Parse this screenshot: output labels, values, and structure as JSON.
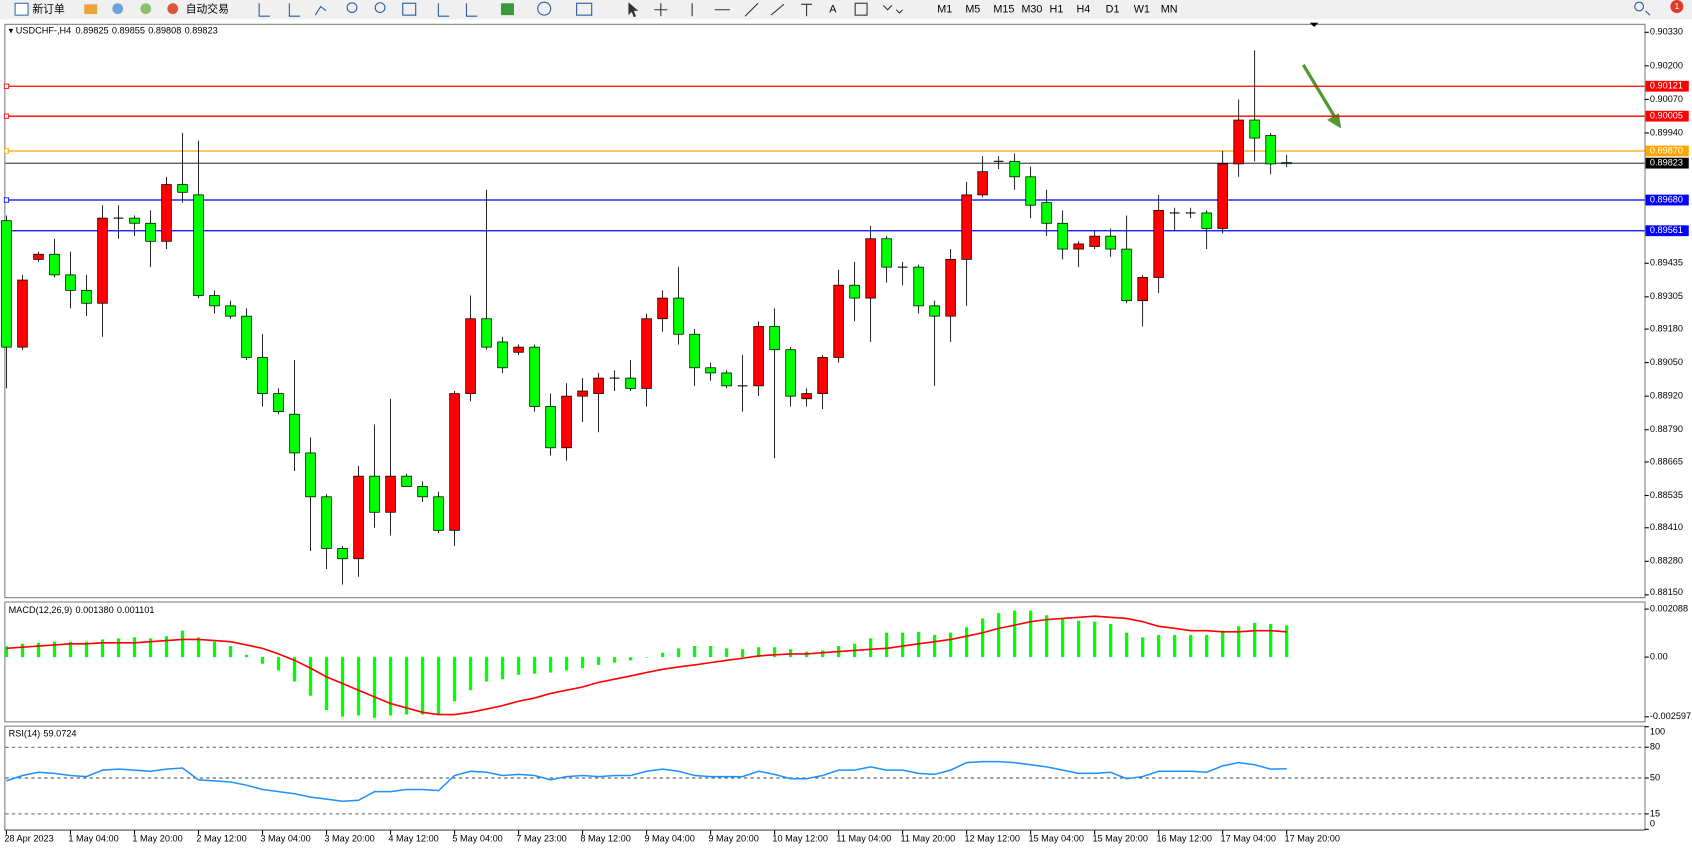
{
  "toolbar": {
    "new_order": "新订单",
    "auto_trading": "自动交易",
    "timeframes": [
      "M1",
      "M5",
      "M15",
      "M30",
      "H1",
      "H4",
      "D1",
      "W1",
      "MN"
    ],
    "badge": "1"
  },
  "chart_data": [
    {
      "type": "candlestick",
      "title": "USDCHF-,H4",
      "categories": [
        "28 Apr 2023",
        null,
        null,
        null,
        "1 May 04:00",
        null,
        null,
        null,
        "1 May 20:00",
        null,
        null,
        null,
        "2 May 12:00",
        null,
        null,
        null,
        "3 May 04:00",
        null,
        null,
        null,
        "3 May 20:00",
        null,
        null,
        null,
        "4 May 12:00",
        null,
        null,
        null,
        "5 May 04:00",
        null,
        null,
        null,
        "7 May 23:00",
        null,
        null,
        null,
        "8 May 12:00",
        null,
        null,
        null,
        "9 May 04:00",
        null,
        null,
        null,
        "9 May 20:00",
        null,
        null,
        null,
        "10 May 12:00",
        null,
        null,
        null,
        "11 May 04:00",
        null,
        null,
        null,
        "11 May 20:00",
        null,
        null,
        null,
        "12 May 12:00",
        null,
        null,
        null,
        "15 May 04:00",
        null,
        null,
        null,
        "15 May 20:00",
        null,
        null,
        null,
        "16 May 12:00",
        null,
        null,
        null,
        "17 May 04:00",
        null,
        null,
        null,
        "17 May 20:00"
      ],
      "open": [
        0.896,
        0.8911,
        0.8945,
        0.8947,
        0.8939,
        0.8933,
        0.8928,
        0.8961,
        0.8961,
        0.8959,
        0.8952,
        0.8974,
        0.897,
        0.8931,
        0.8927,
        0.8923,
        0.8907,
        0.8893,
        0.8885,
        0.887,
        0.8853,
        0.8833,
        0.8829,
        0.8861,
        0.8847,
        0.8861,
        0.8857,
        0.8853,
        0.884,
        0.8893,
        0.8922,
        0.8913,
        0.8909,
        0.8911,
        0.8888,
        0.8872,
        0.8892,
        0.8893,
        0.8899,
        0.8899,
        0.8895,
        0.8922,
        0.893,
        0.8916,
        0.8903,
        0.8901,
        0.8896,
        0.8896,
        0.8919,
        0.891,
        0.8891,
        0.8893,
        0.8907,
        0.8935,
        0.893,
        0.8953,
        0.8942,
        0.8942,
        0.8927,
        0.8923,
        0.8945,
        0.897,
        0.8983,
        0.8983,
        0.8977,
        0.8967,
        0.8959,
        0.8949,
        0.895,
        0.8954,
        0.8949,
        0.8929,
        0.8938,
        0.8963,
        0.8963,
        0.8963,
        0.8957,
        0.8982,
        0.8999,
        0.8993,
        0.89825
      ],
      "high": [
        0.8962,
        0.8939,
        0.8948,
        0.8953,
        0.8948,
        0.8939,
        0.8966,
        0.8966,
        0.8962,
        0.8964,
        0.8977,
        0.8994,
        0.8991,
        0.8933,
        0.8929,
        0.8926,
        0.8916,
        0.8895,
        0.8906,
        0.8876,
        0.8854,
        0.8834,
        0.8865,
        0.8881,
        0.8891,
        0.8862,
        0.8859,
        0.8855,
        0.8894,
        0.8931,
        0.8972,
        0.8915,
        0.8912,
        0.8912,
        0.8893,
        0.8897,
        0.8899,
        0.8901,
        0.8902,
        0.8906,
        0.8924,
        0.8933,
        0.8942,
        0.8918,
        0.8905,
        0.8902,
        0.8908,
        0.8921,
        0.8926,
        0.8911,
        0.8895,
        0.8908,
        0.8941,
        0.8944,
        0.8958,
        0.8954,
        0.8944,
        0.8943,
        0.8929,
        0.8949,
        0.8975,
        0.8985,
        0.8985,
        0.8986,
        0.8981,
        0.8972,
        0.8964,
        0.8952,
        0.8956,
        0.8957,
        0.8962,
        0.8939,
        0.897,
        0.8965,
        0.8965,
        0.8964,
        0.8987,
        0.9007,
        0.9026,
        0.8994,
        0.89855
      ],
      "low": [
        0.8895,
        0.891,
        0.8944,
        0.8938,
        0.8926,
        0.8923,
        0.8915,
        0.8953,
        0.8954,
        0.8942,
        0.8949,
        0.8967,
        0.893,
        0.8924,
        0.8922,
        0.8906,
        0.8888,
        0.8885,
        0.8863,
        0.8832,
        0.8825,
        0.8819,
        0.8822,
        0.8841,
        0.8838,
        0.8857,
        0.8851,
        0.8839,
        0.8834,
        0.889,
        0.891,
        0.8901,
        0.8908,
        0.8886,
        0.8869,
        0.8867,
        0.8882,
        0.8878,
        0.8894,
        0.8894,
        0.8888,
        0.8917,
        0.8912,
        0.8896,
        0.8898,
        0.8895,
        0.8886,
        0.8892,
        0.8868,
        0.8888,
        0.8888,
        0.8887,
        0.8905,
        0.8921,
        0.8913,
        0.8936,
        0.8935,
        0.8924,
        0.8896,
        0.8913,
        0.8927,
        0.8969,
        0.898,
        0.8972,
        0.8961,
        0.8954,
        0.8945,
        0.8942,
        0.8949,
        0.8946,
        0.8928,
        0.8919,
        0.8932,
        0.8956,
        0.8961,
        0.8949,
        0.8955,
        0.8977,
        0.8983,
        0.8978,
        0.89808
      ],
      "close": [
        0.8911,
        0.8937,
        0.8947,
        0.8939,
        0.8933,
        0.8928,
        0.8961,
        0.8961,
        0.8959,
        0.8952,
        0.8974,
        0.8971,
        0.8931,
        0.8927,
        0.8923,
        0.8907,
        0.8893,
        0.8886,
        0.887,
        0.8853,
        0.8833,
        0.8829,
        0.8861,
        0.8847,
        0.8861,
        0.8857,
        0.8853,
        0.884,
        0.8893,
        0.8922,
        0.8911,
        0.8903,
        0.8911,
        0.8888,
        0.8872,
        0.8892,
        0.8894,
        0.8899,
        0.8899,
        0.8895,
        0.8922,
        0.893,
        0.8916,
        0.8903,
        0.8901,
        0.8896,
        0.8896,
        0.8919,
        0.891,
        0.8892,
        0.8893,
        0.8907,
        0.8935,
        0.893,
        0.8953,
        0.8942,
        0.8942,
        0.8927,
        0.8923,
        0.8945,
        0.897,
        0.8979,
        0.8983,
        0.8977,
        0.8966,
        0.8959,
        0.8949,
        0.8951,
        0.8954,
        0.8949,
        0.8929,
        0.8938,
        0.8964,
        0.8963,
        0.8963,
        0.8957,
        0.8982,
        0.8999,
        0.8992,
        0.8982,
        0.89823
      ],
      "up_color": "#ff0000",
      "down_color": "#00ff00",
      "ylim": [
        0.88137,
        0.90363
      ],
      "yticks": [
        {
          "value": 0.9033,
          "label": "0.90330"
        },
        {
          "value": 0.902,
          "label": "0.90200"
        },
        {
          "value": 0.9007,
          "label": "0.90070"
        },
        {
          "value": 0.8994,
          "label": "0.89940"
        },
        0.89435,
        0.89305,
        {
          "value": 0.8918,
          "label": "0.89180"
        },
        {
          "value": 0.8905,
          "label": "0.89050"
        },
        {
          "value": 0.8892,
          "label": "0.88920"
        },
        {
          "value": 0.8879,
          "label": "0.88790"
        },
        0.88665,
        0.88535,
        {
          "value": 0.8841,
          "label": "0.88410"
        },
        {
          "value": 0.8828,
          "label": "0.88280"
        },
        {
          "value": 0.8815,
          "label": "0.88150"
        }
      ],
      "hlines": [
        {
          "value": 0.90121,
          "color": "#ff0000"
        },
        {
          "value": 0.90005,
          "color": "#ff0000"
        },
        {
          "value": 0.8987,
          "label": "0.89870",
          "color": "#ffa500"
        },
        {
          "value": 0.8968,
          "label": "0.89680",
          "color": "#0000ff"
        },
        {
          "value": 0.89561,
          "color": "#0000ff"
        }
      ]
    },
    {
      "type": "macd",
      "title": "MACD(12,26,9)",
      "series": [
        {
          "color": "#00ff00",
          "value_label": "0.001380",
          "values": [
            0.00048,
            0.00058,
            0.00062,
            0.00067,
            0.00067,
            0.00067,
            0.00077,
            0.00082,
            0.00086,
            0.00082,
            0.00091,
            0.00115,
            0.00086,
            0.00067,
            0.00048,
            0.0001,
            -0.00029,
            -0.00058,
            -0.00106,
            -0.00168,
            -0.0023,
            -0.00259,
            -0.00254,
            -0.00264,
            -0.00254,
            -0.0025,
            -0.0025,
            -0.0025,
            -0.00192,
            -0.00144,
            -0.00106,
            -0.00096,
            -0.00077,
            -0.00072,
            -0.00067,
            -0.00058,
            -0.00048,
            -0.00034,
            -0.00024,
            -0.00014,
            0,
            0.00019,
            0.00038,
            0.00048,
            0.00048,
            0.00038,
            0.00034,
            0.00043,
            0.00043,
            0.00034,
            0.00024,
            0.00029,
            0.00048,
            0.00058,
            0.00082,
            0.00106,
            0.00106,
            0.0011,
            0.00096,
            0.00106,
            0.0013,
            0.00168,
            0.00192,
            0.00202,
            0.00202,
            0.00182,
            0.00168,
            0.00158,
            0.00154,
            0.00144,
            0.00106,
            0.00086,
            0.00096,
            0.00096,
            0.00096,
            0.00096,
            0.00115,
            0.00134,
            0.00149,
            0.00144,
            0.00138
          ]
        },
        {
          "color": "#ff0000",
          "value_label": "0.001101",
          "values": [
            0.00038,
            0.00043,
            0.00048,
            0.00053,
            0.00058,
            0.00058,
            0.00062,
            0.00062,
            0.00062,
            0.00067,
            0.00072,
            0.00077,
            0.00077,
            0.00072,
            0.00067,
            0.00053,
            0.00038,
            0.00014,
            -0.00014,
            -0.00048,
            -0.00086,
            -0.00115,
            -0.00144,
            -0.00173,
            -0.00202,
            -0.00221,
            -0.0024,
            -0.0025,
            -0.0025,
            -0.0024,
            -0.00226,
            -0.00211,
            -0.00192,
            -0.00178,
            -0.00158,
            -0.00144,
            -0.0013,
            -0.0011,
            -0.00096,
            -0.00082,
            -0.00067,
            -0.00053,
            -0.00043,
            -0.00034,
            -0.00024,
            -0.00014,
            -5e-05,
            5e-05,
            0.0001,
            0.00014,
            0.00014,
            0.00019,
            0.00024,
            0.00029,
            0.00034,
            0.00038,
            0.00048,
            0.00058,
            0.00067,
            0.00077,
            0.00091,
            0.00106,
            0.00125,
            0.00139,
            0.00154,
            0.00163,
            0.00168,
            0.00173,
            0.00178,
            0.00173,
            0.00168,
            0.00154,
            0.00134,
            0.00125,
            0.00115,
            0.00115,
            0.0011,
            0.0011,
            0.00115,
            0.00115,
            0.001101
          ]
        }
      ],
      "ylim": [
        -0.00284,
        0.00242
      ],
      "yticks": [
        0.002088,
        {
          "value": 0,
          "label": "0.00"
        },
        -0.002597
      ]
    },
    {
      "type": "rsi",
      "title": "RSI(14)",
      "color": "#1e90ff",
      "values": [
        47.2,
        52.4,
        55.6,
        54.5,
        52.4,
        51.4,
        57.7,
        58.7,
        57.7,
        56.6,
        58.7,
        59.7,
        48.2,
        47.2,
        46.1,
        43,
        38.8,
        36.7,
        34.6,
        31.4,
        29.4,
        27.3,
        28.3,
        36.7,
        36.7,
        38.8,
        38.8,
        37.7,
        52.4,
        56.6,
        55.6,
        52.4,
        53.5,
        52.4,
        48.2,
        51.4,
        52.4,
        51.4,
        52.4,
        52.4,
        56.6,
        58.7,
        56.6,
        52.4,
        51.4,
        51.4,
        51.4,
        56.6,
        53.5,
        49.3,
        49.3,
        52.4,
        57.7,
        57.7,
        60.8,
        57.7,
        57.7,
        54.5,
        53.5,
        57.7,
        65,
        66,
        66,
        65,
        62.9,
        60.8,
        57.7,
        54.5,
        54.5,
        55.6,
        49.3,
        51.4,
        56.6,
        56.6,
        56.6,
        55.6,
        61.8,
        65,
        62.9,
        58.7,
        59.0724
      ],
      "ylim": [
        0,
        100
      ],
      "yticks": [
        100,
        80,
        50,
        15,
        0
      ]
    }
  ]
}
